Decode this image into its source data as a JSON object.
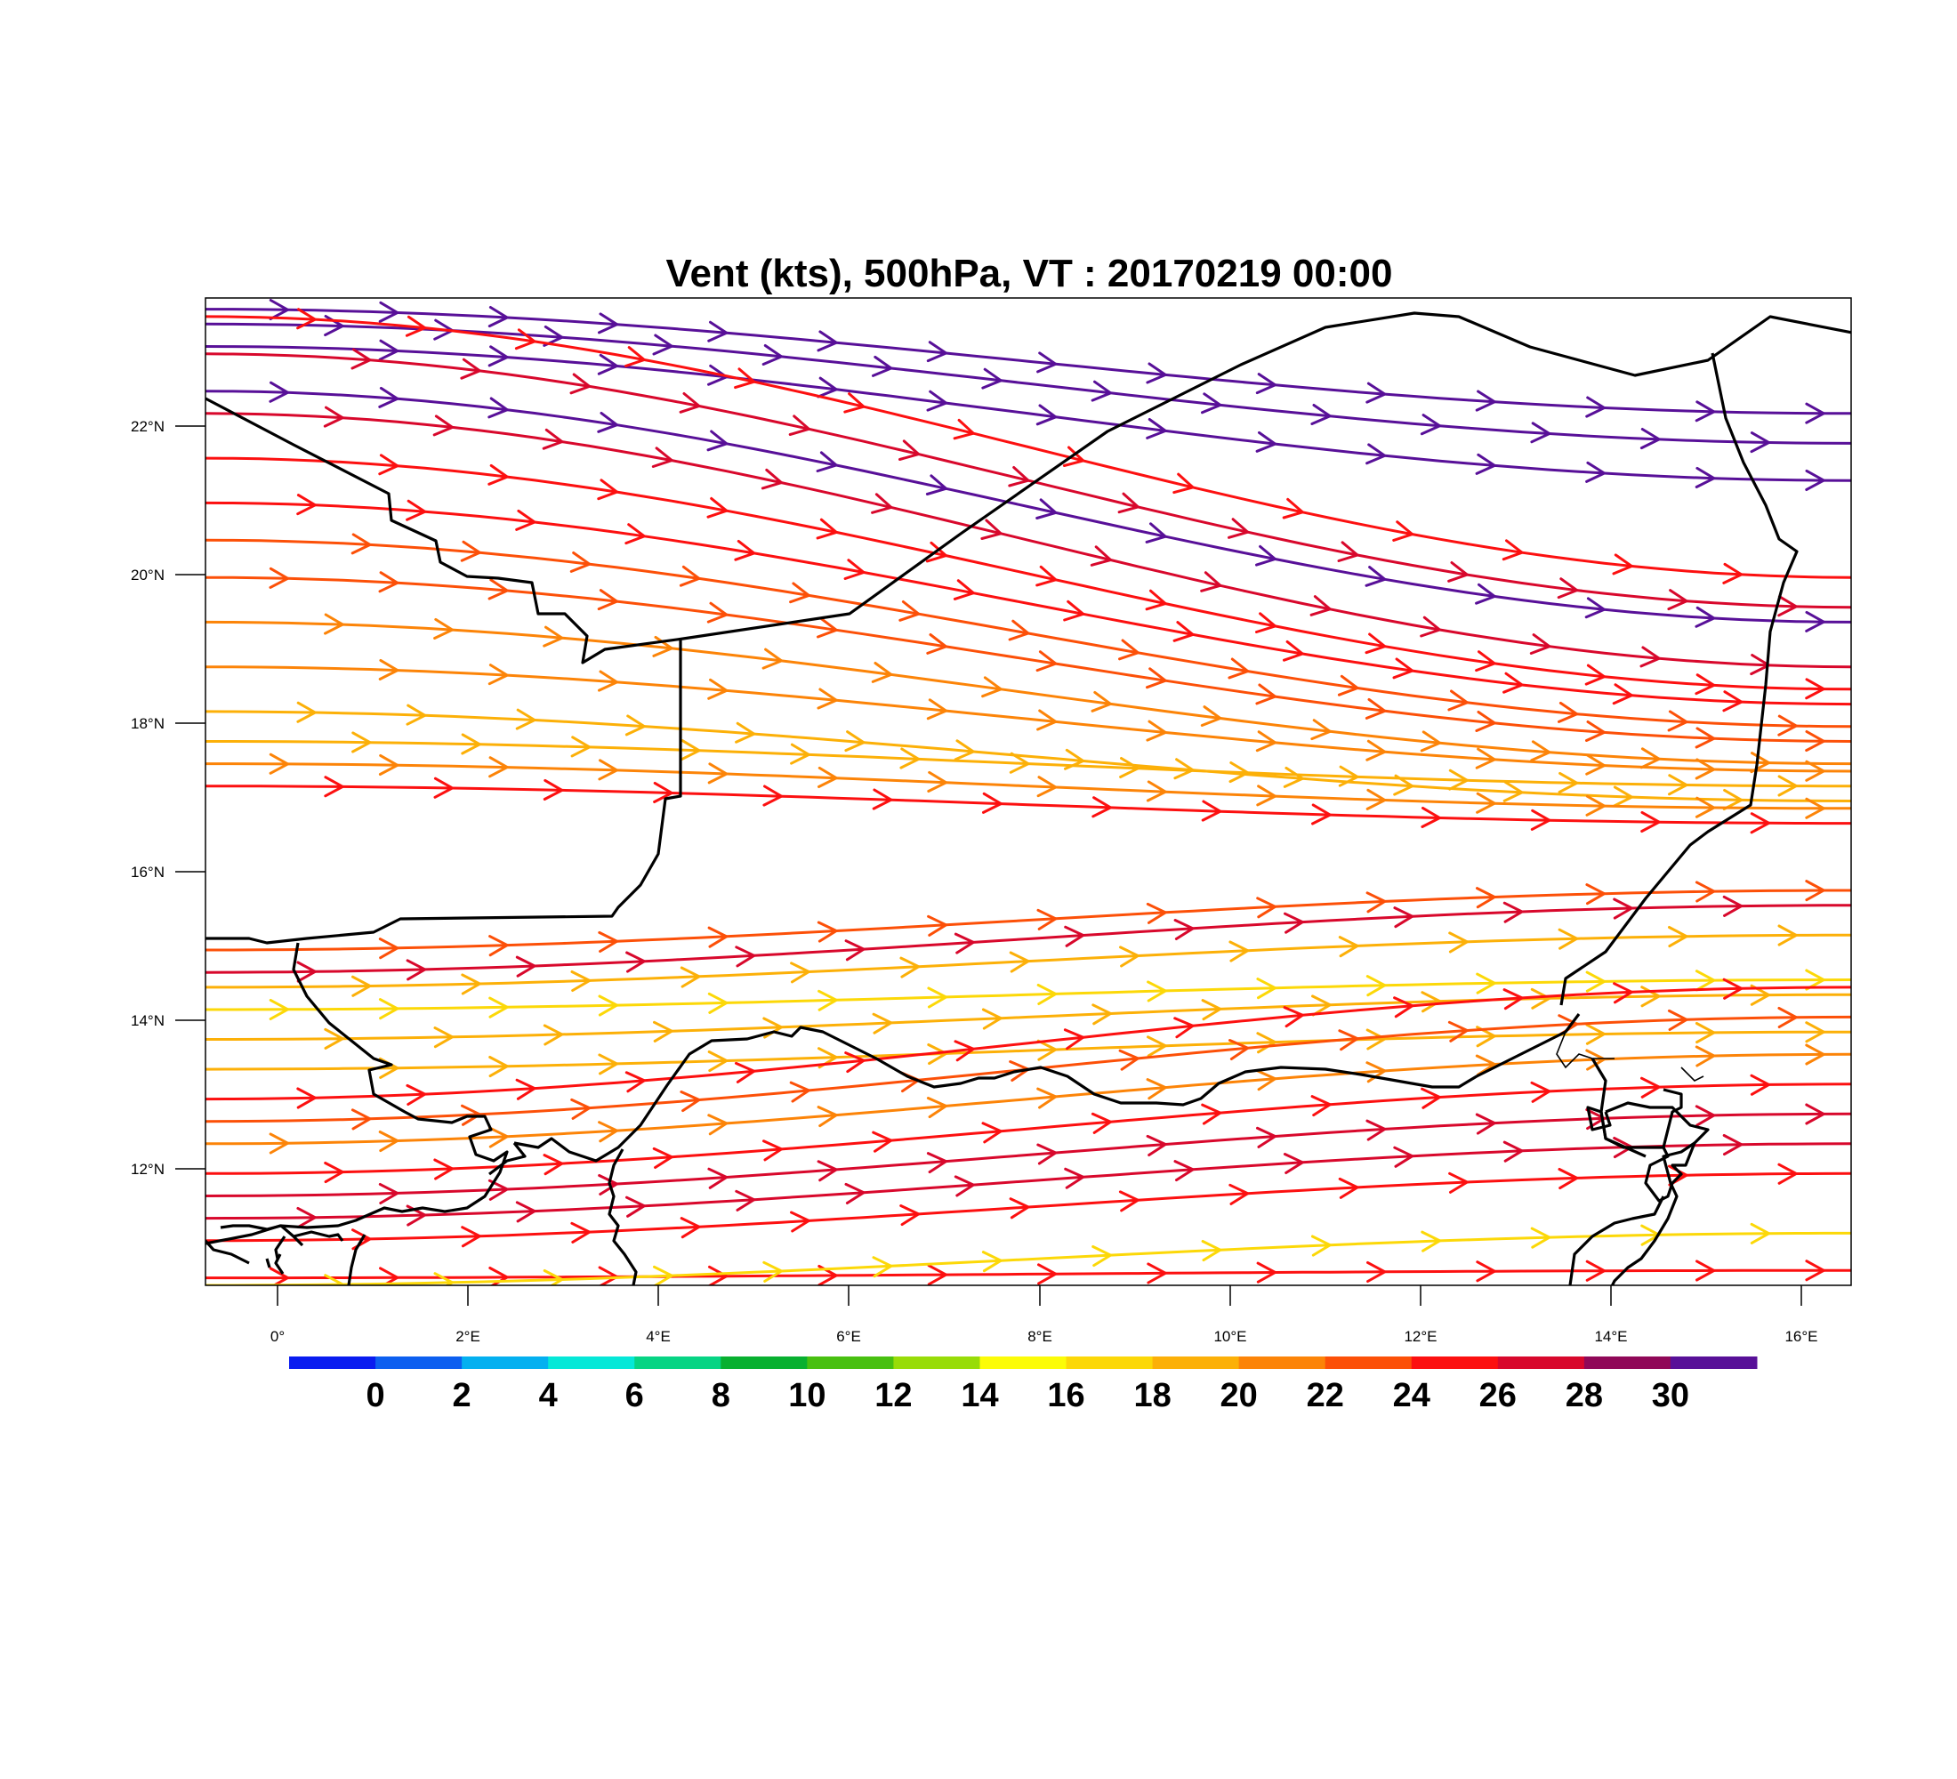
{
  "title": "Vent (kts), 500hPa, VT : 20170219  00:00",
  "map": {
    "lon_range": [
      -0.75,
      16.5
    ],
    "lat_range": [
      10.5,
      23.75
    ],
    "lon_ticks": [
      "0°",
      "2°E",
      "4°E",
      "6°E",
      "8°E",
      "10°E",
      "12°E",
      "14°E",
      "16°E"
    ],
    "lat_ticks": [
      "22°N",
      "20°N",
      "18°N",
      "16°N",
      "14°N",
      "12°N"
    ],
    "flow_direction": "west-to-east"
  },
  "colorbar": {
    "labels": [
      "0",
      "2",
      "4",
      "6",
      "8",
      "10",
      "12",
      "14",
      "16",
      "18",
      "20",
      "22",
      "24",
      "26",
      "28",
      "30"
    ],
    "colors": [
      "#0a1cf0",
      "#0d5ff0",
      "#04b0f0",
      "#05e8d8",
      "#06d484",
      "#08b030",
      "#48c010",
      "#98dc08",
      "#fcfc08",
      "#fcd808",
      "#fcb008",
      "#fc8408",
      "#fc5008",
      "#fc1010",
      "#d8082c",
      "#900858",
      "#581098"
    ]
  },
  "chart_data": {
    "type": "streamlines",
    "variable": "Vent (kts), 500hPa",
    "units": "kts",
    "streamlines": [
      {
        "lat_start": 23.6,
        "lat_end": 22.2,
        "speed": 30
      },
      {
        "lat_start": 23.4,
        "lat_end": 21.8,
        "speed": 31
      },
      {
        "lat_start": 23.1,
        "lat_end": 21.3,
        "speed": 31
      },
      {
        "lat_start": 23.5,
        "lat_end": 20.0,
        "speed": 24
      },
      {
        "lat_start": 23.0,
        "lat_end": 19.6,
        "speed": 27
      },
      {
        "lat_start": 22.5,
        "lat_end": 19.4,
        "speed": 30
      },
      {
        "lat_start": 22.2,
        "lat_end": 18.8,
        "speed": 26
      },
      {
        "lat_start": 21.6,
        "lat_end": 18.5,
        "speed": 25
      },
      {
        "lat_start": 21.0,
        "lat_end": 18.3,
        "speed": 24
      },
      {
        "lat_start": 20.5,
        "lat_end": 18.0,
        "speed": 23
      },
      {
        "lat_start": 20.0,
        "lat_end": 17.8,
        "speed": 22
      },
      {
        "lat_start": 19.4,
        "lat_end": 17.5,
        "speed": 21
      },
      {
        "lat_start": 18.8,
        "lat_end": 17.4,
        "speed": 20
      },
      {
        "lat_start": 18.2,
        "lat_end": 17.0,
        "speed": 19
      },
      {
        "lat_start": 17.8,
        "lat_end": 17.2,
        "speed": 18
      },
      {
        "lat_start": 17.5,
        "lat_end": 16.9,
        "speed": 21
      },
      {
        "lat_start": 17.2,
        "lat_end": 16.7,
        "speed": 24
      },
      {
        "lat_start": 15.0,
        "lat_end": 15.8,
        "speed": 22
      },
      {
        "lat_start": 14.7,
        "lat_end": 15.6,
        "speed": 26
      },
      {
        "lat_start": 14.5,
        "lat_end": 15.2,
        "speed": 18
      },
      {
        "lat_start": 14.2,
        "lat_end": 14.6,
        "speed": 17
      },
      {
        "lat_start": 13.8,
        "lat_end": 14.4,
        "speed": 19
      },
      {
        "lat_start": 13.4,
        "lat_end": 13.9,
        "speed": 18
      },
      {
        "lat_start": 13.0,
        "lat_end": 14.5,
        "speed": 24
      },
      {
        "lat_start": 12.7,
        "lat_end": 14.1,
        "speed": 22
      },
      {
        "lat_start": 12.4,
        "lat_end": 13.6,
        "speed": 21
      },
      {
        "lat_start": 12.0,
        "lat_end": 13.2,
        "speed": 25
      },
      {
        "lat_start": 11.7,
        "lat_end": 12.8,
        "speed": 26
      },
      {
        "lat_start": 11.4,
        "lat_end": 12.4,
        "speed": 27
      },
      {
        "lat_start": 11.1,
        "lat_end": 12.0,
        "speed": 25
      },
      {
        "lat_start": 10.6,
        "lat_end": 10.7,
        "speed": 25
      },
      {
        "lat_start": 10.5,
        "lat_end": 11.2,
        "speed": 17
      }
    ]
  }
}
